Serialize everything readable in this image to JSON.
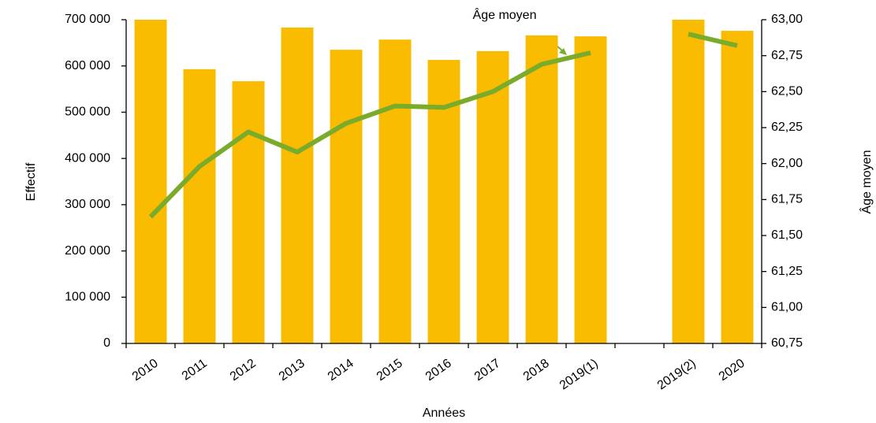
{
  "chart_data": {
    "type": "bar_line",
    "xlabel": "Années",
    "ylabel": "Effectif",
    "y2label": "Âge moyen",
    "annotations": [
      {
        "text": "Âge moyen"
      }
    ],
    "categories": [
      "2010",
      "2011",
      "2012",
      "2013",
      "2014",
      "2015",
      "2016",
      "2017",
      "2018",
      "2019(1)",
      null,
      "2019(2)",
      "2020"
    ],
    "series": [
      {
        "type": "bar",
        "color": "#f9bc00",
        "values": [
          700000,
          593000,
          567000,
          683000,
          635000,
          657000,
          613000,
          632000,
          666000,
          664000,
          null,
          700000,
          676000
        ]
      },
      {
        "type": "line",
        "axis": "y2",
        "color": "#7aab2a",
        "values": [
          61.63,
          61.98,
          62.22,
          62.08,
          62.28,
          62.4,
          62.39,
          62.5,
          62.69,
          62.77,
          null,
          62.9,
          62.82
        ]
      }
    ],
    "ylim": [
      0,
      700000
    ],
    "yticks": [
      0,
      {
        "value": 100000,
        "label": "100 000"
      },
      {
        "value": 200000,
        "label": "200 000"
      },
      {
        "value": 300000,
        "label": "300 000"
      },
      {
        "value": 400000,
        "label": "400 000"
      },
      {
        "value": 500000,
        "label": "500 000"
      },
      {
        "value": 600000,
        "label": "600 000"
      },
      {
        "value": 700000,
        "label": "700 000"
      }
    ],
    "y2lim": [
      60.75,
      63.0
    ],
    "y2ticks": [
      {
        "value": 60.75,
        "label": "60,75"
      },
      {
        "value": 61.0,
        "label": "61,00"
      },
      {
        "value": 61.25,
        "label": "61,25"
      },
      {
        "value": 61.5,
        "label": "61,50"
      },
      {
        "value": 61.75,
        "label": "61,75"
      },
      {
        "value": 62.0,
        "label": "62,00"
      },
      {
        "value": 62.25,
        "label": "62,25"
      },
      {
        "value": 62.5,
        "label": "62,50"
      },
      {
        "value": 62.75,
        "label": "62,75"
      },
      {
        "value": 63.0,
        "label": "63,00"
      }
    ],
    "grid": false
  }
}
